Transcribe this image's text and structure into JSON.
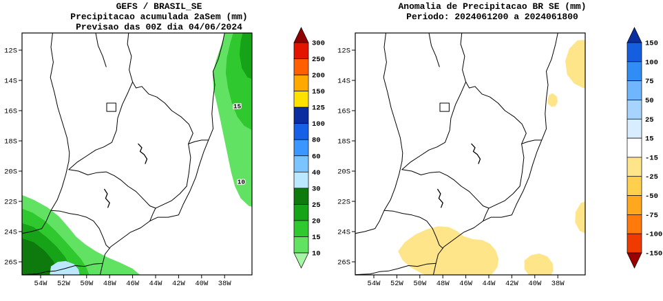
{
  "left_panel": {
    "title_line1": "GEFS / BRASIL_SE",
    "title_line2": "Precipitacao acumulada 2aSem (mm)",
    "title_line3": "Previsao das 00Z dia 04/06/2024",
    "lat_labels": [
      "12S",
      "14S",
      "16S",
      "18S",
      "20S",
      "22S",
      "24S",
      "26S"
    ],
    "lon_labels": [
      "54W",
      "52W",
      "50W",
      "48W",
      "46W",
      "44W",
      "42W",
      "40W",
      "38W"
    ],
    "contour_labels": [
      {
        "text": "15",
        "lon": 36.9,
        "lat": 15.7
      },
      {
        "text": "10",
        "lon": 36.55,
        "lat": 20.7
      }
    ],
    "colorbar": {
      "tick_labels": [
        "300",
        "250",
        "200",
        "150",
        "125",
        "100",
        "80",
        "60",
        "40",
        "30",
        "25",
        "20",
        "15",
        "10"
      ],
      "segment_colors_top_to_bottom": [
        "#8f0000",
        "#e31400",
        "#ff5f00",
        "#ffa800",
        "#ffe100",
        "#0b2da0",
        "#1560e6",
        "#3b96ff",
        "#7cc4ff",
        "#bce8ff",
        "#0e7a0e",
        "#17a317",
        "#2fc82f",
        "#62e262",
        "#a5f5a5"
      ]
    },
    "shaded_regions": [
      {
        "range_mm": "10-15",
        "color_index": 13,
        "points": [
          [
            37.8,
            10.5
          ],
          [
            38.3,
            11.7
          ],
          [
            38.75,
            12.7
          ],
          [
            39.05,
            13.6
          ],
          [
            38.95,
            14.6
          ],
          [
            38.65,
            15.6
          ],
          [
            38.35,
            16.7
          ],
          [
            38.05,
            17.8
          ],
          [
            37.75,
            18.9
          ],
          [
            37.45,
            20.0
          ],
          [
            37.1,
            21.0
          ],
          [
            36.6,
            21.8
          ],
          [
            35.9,
            22.3
          ],
          [
            35.0,
            22.45
          ],
          [
            35.0,
            10.5
          ]
        ]
      },
      {
        "range_mm": "15-20",
        "color_index": 12,
        "points": [
          [
            37.1,
            10.5
          ],
          [
            37.5,
            11.5
          ],
          [
            37.8,
            12.5
          ],
          [
            37.9,
            13.5
          ],
          [
            37.7,
            14.5
          ],
          [
            37.35,
            15.55
          ],
          [
            36.9,
            16.4
          ],
          [
            36.3,
            17.0
          ],
          [
            35.6,
            17.3
          ],
          [
            35.0,
            17.35
          ],
          [
            35.0,
            10.5
          ]
        ]
      },
      {
        "range_mm": "20-25",
        "color_index": 11,
        "points": [
          [
            36.3,
            10.5
          ],
          [
            36.6,
            11.4
          ],
          [
            36.7,
            12.3
          ],
          [
            36.5,
            13.2
          ],
          [
            36.0,
            13.8
          ],
          [
            35.3,
            14.0
          ],
          [
            35.0,
            14.0
          ],
          [
            35.0,
            10.5
          ]
        ]
      },
      {
        "range_mm": "10-15",
        "color_index": 13,
        "points": [
          [
            56.2,
            21.4
          ],
          [
            54.6,
            21.9
          ],
          [
            53.4,
            22.4
          ],
          [
            52.4,
            23.0
          ],
          [
            51.6,
            23.7
          ],
          [
            50.9,
            24.35
          ],
          [
            50.1,
            24.85
          ],
          [
            49.2,
            25.3
          ],
          [
            48.2,
            25.7
          ],
          [
            47.1,
            26.05
          ],
          [
            46.0,
            26.45
          ],
          [
            45.3,
            26.9
          ],
          [
            45.1,
            27.3
          ],
          [
            56.2,
            27.3
          ]
        ]
      },
      {
        "range_mm": "15-20",
        "color_index": 12,
        "points": [
          [
            56.2,
            22.3
          ],
          [
            54.7,
            22.75
          ],
          [
            53.6,
            23.3
          ],
          [
            52.7,
            23.95
          ],
          [
            51.9,
            24.6
          ],
          [
            51.2,
            25.2
          ],
          [
            50.5,
            25.8
          ],
          [
            50.0,
            26.4
          ],
          [
            49.7,
            27.0
          ],
          [
            49.6,
            27.3
          ],
          [
            56.2,
            27.3
          ]
        ]
      },
      {
        "range_mm": "20-25",
        "color_index": 11,
        "points": [
          [
            56.2,
            23.3
          ],
          [
            54.6,
            23.7
          ],
          [
            53.5,
            24.35
          ],
          [
            52.6,
            25.0
          ],
          [
            51.9,
            25.65
          ],
          [
            51.4,
            26.3
          ],
          [
            51.15,
            26.9
          ],
          [
            51.1,
            27.3
          ],
          [
            56.2,
            27.3
          ]
        ]
      },
      {
        "range_mm": "25-30",
        "color_index": 10,
        "points": [
          [
            56.2,
            24.3
          ],
          [
            54.6,
            24.7
          ],
          [
            53.6,
            25.3
          ],
          [
            52.9,
            25.95
          ],
          [
            52.5,
            26.6
          ],
          [
            52.35,
            27.3
          ],
          [
            56.2,
            27.3
          ]
        ]
      },
      {
        "range_mm": "30-40",
        "color_index": 9,
        "points": [
          [
            53.1,
            26.3
          ],
          [
            52.5,
            26.0
          ],
          [
            51.8,
            25.95
          ],
          [
            51.1,
            26.15
          ],
          [
            50.7,
            26.5
          ],
          [
            50.6,
            26.9
          ],
          [
            50.75,
            27.3
          ],
          [
            53.0,
            27.3
          ],
          [
            53.2,
            26.8
          ]
        ]
      }
    ]
  },
  "right_panel": {
    "title_line1": "Anomalia de Precipitacao BR SE (mm)",
    "title_line2": "Periodo: 2024061200 a 2024061800",
    "lat_labels": [
      "12S",
      "14S",
      "16S",
      "18S",
      "20S",
      "22S",
      "24S",
      "26S"
    ],
    "lon_labels": [
      "54W",
      "52W",
      "50W",
      "48W",
      "46W",
      "44W",
      "42W",
      "40W",
      "38W"
    ],
    "contour_labels": [],
    "colorbar": {
      "tick_labels": [
        "150",
        "100",
        "75",
        "50",
        "25",
        "15",
        "-15",
        "-25",
        "-50",
        "-75",
        "-100",
        "-150"
      ],
      "segment_colors_top_to_bottom": [
        "#0b2da0",
        "#155ee0",
        "#2f8df5",
        "#6fb6ff",
        "#a6d4ff",
        "#d8edff",
        "#ffffff",
        "#ffe58a",
        "#ffd04d",
        "#ffa81e",
        "#ff7a0a",
        "#ef3b00",
        "#9b0000"
      ]
    },
    "shaded_regions": [
      {
        "range_mm": "-25 to -15",
        "color_index": 7,
        "points": [
          [
            35.2,
            11.3
          ],
          [
            36.3,
            11.35
          ],
          [
            37.0,
            11.9
          ],
          [
            37.35,
            12.7
          ],
          [
            37.2,
            13.6
          ],
          [
            36.6,
            14.2
          ],
          [
            35.8,
            14.5
          ],
          [
            35.2,
            14.55
          ]
        ]
      },
      {
        "range_mm": "-25 to -15",
        "color_index": 7,
        "points": [
          [
            38.9,
            15.3
          ],
          [
            38.75,
            14.95
          ],
          [
            38.45,
            14.85
          ],
          [
            38.1,
            15.05
          ],
          [
            38.0,
            15.4
          ],
          [
            38.2,
            15.7
          ],
          [
            38.55,
            15.75
          ],
          [
            38.85,
            15.55
          ]
        ]
      },
      {
        "range_mm": "-25 to -15",
        "color_index": 7,
        "points": [
          [
            35.2,
            21.9
          ],
          [
            36.0,
            22.1
          ],
          [
            36.45,
            22.7
          ],
          [
            36.5,
            23.4
          ],
          [
            36.1,
            23.95
          ],
          [
            35.4,
            24.2
          ],
          [
            35.2,
            24.25
          ]
        ]
      },
      {
        "range_mm": "-25 to -15",
        "color_index": 7,
        "points": [
          [
            51.9,
            25.3
          ],
          [
            51.3,
            24.7
          ],
          [
            50.4,
            24.2
          ],
          [
            49.4,
            23.85
          ],
          [
            48.4,
            23.65
          ],
          [
            47.5,
            23.7
          ],
          [
            46.8,
            23.95
          ],
          [
            46.2,
            24.3
          ],
          [
            45.4,
            24.5
          ],
          [
            44.6,
            24.55
          ],
          [
            43.9,
            24.8
          ],
          [
            43.4,
            25.25
          ],
          [
            43.15,
            25.8
          ],
          [
            43.25,
            26.35
          ],
          [
            43.7,
            26.8
          ],
          [
            44.5,
            27.05
          ],
          [
            45.5,
            27.15
          ],
          [
            46.6,
            27.2
          ],
          [
            47.8,
            27.2
          ],
          [
            48.9,
            27.05
          ],
          [
            49.9,
            26.75
          ],
          [
            50.8,
            26.35
          ],
          [
            51.5,
            25.9
          ]
        ]
      },
      {
        "range_mm": "-25 to -15",
        "color_index": 7,
        "points": [
          [
            40.9,
            25.9
          ],
          [
            40.3,
            25.55
          ],
          [
            39.6,
            25.45
          ],
          [
            38.9,
            25.65
          ],
          [
            38.45,
            26.1
          ],
          [
            38.4,
            26.6
          ],
          [
            38.7,
            27.05
          ],
          [
            39.5,
            27.2
          ],
          [
            40.4,
            27.0
          ],
          [
            40.9,
            26.5
          ]
        ]
      }
    ]
  }
}
